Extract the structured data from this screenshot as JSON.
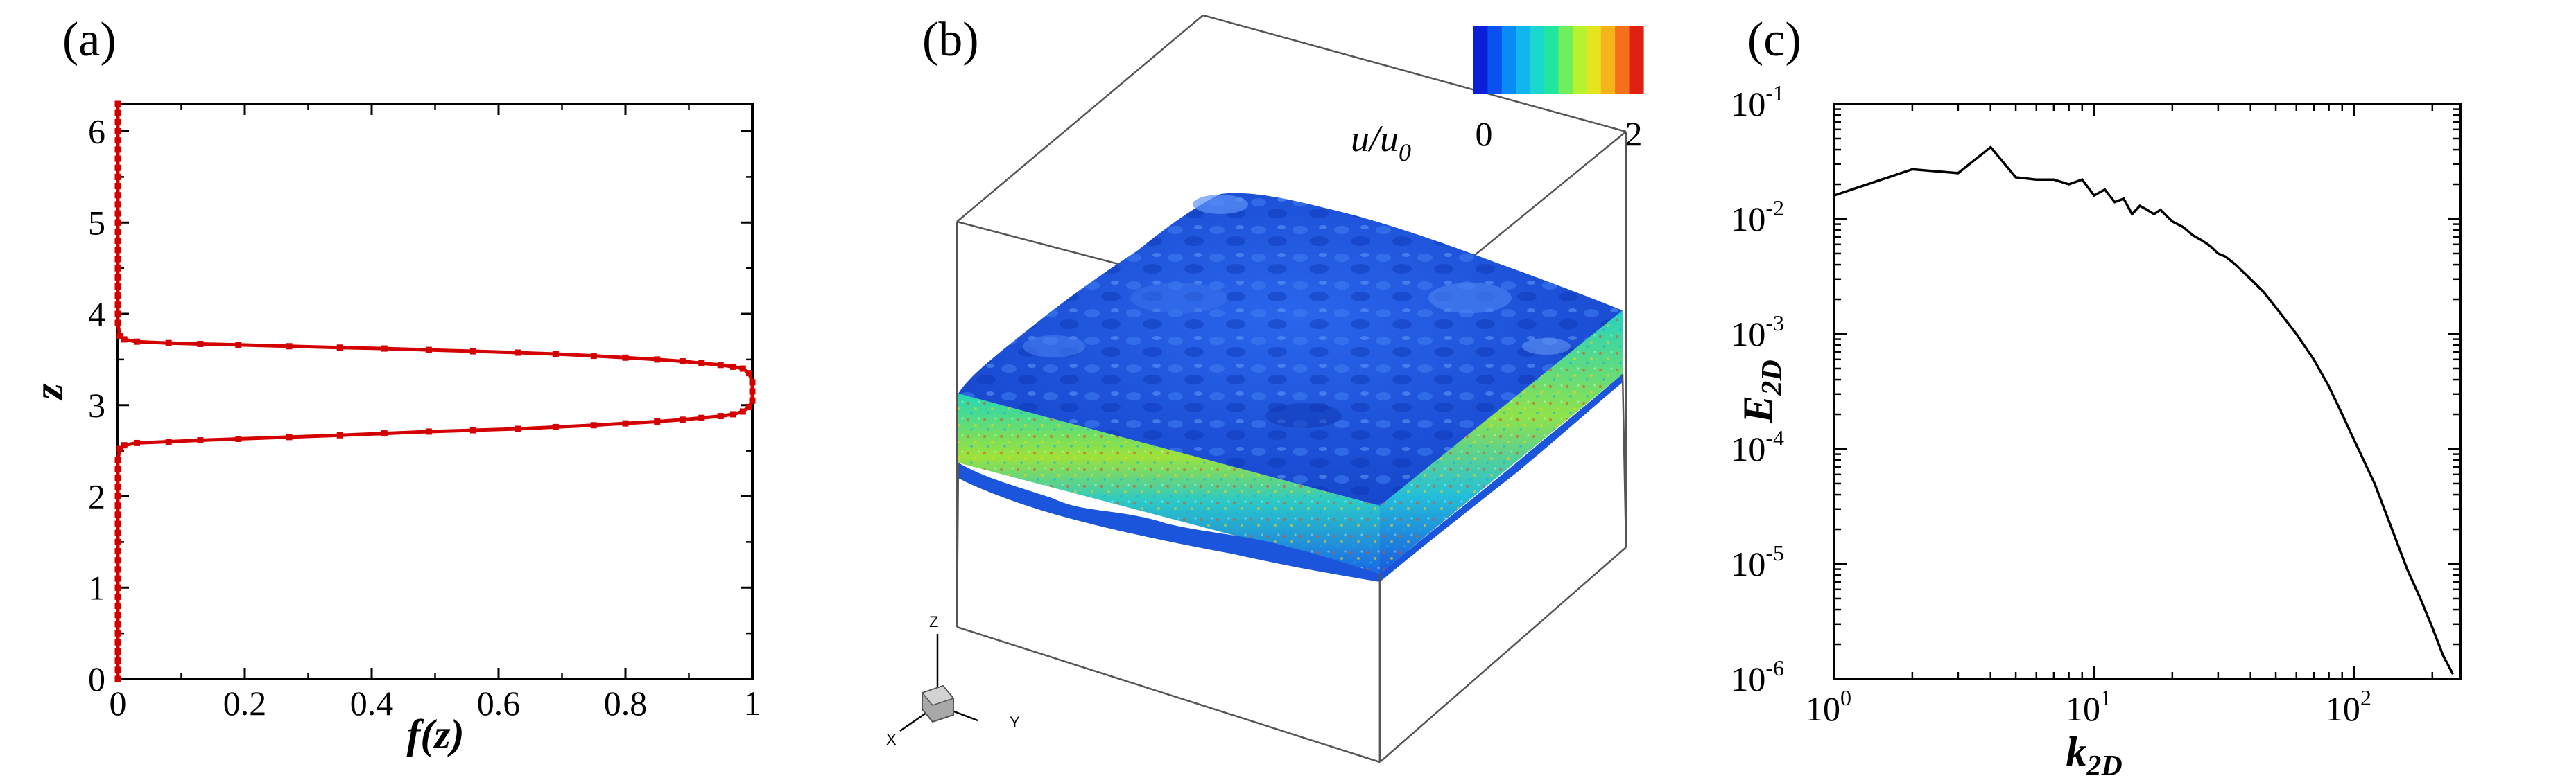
{
  "panels": {
    "a": {
      "label": "(a)"
    },
    "b": {
      "label": "(b)"
    },
    "c": {
      "label": "(c)"
    }
  },
  "colors": {
    "profile_line": "#d40000",
    "spectrum_line": "#000000",
    "surface_top": "#1a4fd6",
    "colorbar": [
      "#0b1fd8",
      "#0a52f0",
      "#0a8af5",
      "#11b6ee",
      "#1ad8d0",
      "#22e5a0",
      "#6fef5b",
      "#b6f230",
      "#e6e41f",
      "#f6b31a",
      "#f4701a",
      "#e02010"
    ]
  },
  "colorbar": {
    "label_main": "u/u",
    "label_sub": "0",
    "ticks": [
      "0",
      "2"
    ]
  },
  "triad": {
    "x": "X",
    "y": "Y",
    "z": "Z"
  },
  "chart_data": [
    {
      "panel": "(a)",
      "type": "line",
      "xlabel": "f(z)",
      "ylabel": "z",
      "xlim": [
        0,
        1
      ],
      "ylim": [
        0,
        6.3
      ],
      "xticks": [
        "0",
        "0.2",
        "0.4",
        "0.6",
        "0.8",
        "1"
      ],
      "yticks": [
        "0",
        "1",
        "2",
        "3",
        "4",
        "5",
        "6"
      ],
      "grid": false,
      "series": [
        {
          "marker": "square",
          "points": [
            [
              0.0,
              0.0
            ],
            [
              0.0,
              0.5
            ],
            [
              0.0,
              1.0
            ],
            [
              0.0,
              1.5
            ],
            [
              0.0,
              2.0
            ],
            [
              0.0,
              2.4
            ],
            [
              0.003,
              2.52
            ],
            [
              0.01,
              2.56
            ],
            [
              0.03,
              2.585
            ],
            [
              0.08,
              2.6
            ],
            [
              0.13,
              2.615
            ],
            [
              0.19,
              2.63
            ],
            [
              0.27,
              2.65
            ],
            [
              0.35,
              2.67
            ],
            [
              0.42,
              2.69
            ],
            [
              0.49,
              2.71
            ],
            [
              0.56,
              2.725
            ],
            [
              0.63,
              2.74
            ],
            [
              0.69,
              2.76
            ],
            [
              0.75,
              2.78
            ],
            [
              0.8,
              2.8
            ],
            [
              0.85,
              2.82
            ],
            [
              0.89,
              2.84
            ],
            [
              0.92,
              2.86
            ],
            [
              0.95,
              2.88
            ],
            [
              0.97,
              2.9
            ],
            [
              0.985,
              2.93
            ],
            [
              0.995,
              2.98
            ],
            [
              1.0,
              3.05
            ],
            [
              1.0,
              3.15
            ],
            [
              1.0,
              3.25
            ],
            [
              0.995,
              3.35
            ],
            [
              0.985,
              3.4
            ],
            [
              0.97,
              3.42
            ],
            [
              0.95,
              3.44
            ],
            [
              0.92,
              3.46
            ],
            [
              0.89,
              3.48
            ],
            [
              0.85,
              3.5
            ],
            [
              0.8,
              3.52
            ],
            [
              0.75,
              3.54
            ],
            [
              0.69,
              3.56
            ],
            [
              0.63,
              3.575
            ],
            [
              0.56,
              3.59
            ],
            [
              0.49,
              3.605
            ],
            [
              0.42,
              3.62
            ],
            [
              0.35,
              3.63
            ],
            [
              0.27,
              3.645
            ],
            [
              0.19,
              3.66
            ],
            [
              0.13,
              3.67
            ],
            [
              0.08,
              3.68
            ],
            [
              0.03,
              3.695
            ],
            [
              0.01,
              3.72
            ],
            [
              0.003,
              3.76
            ],
            [
              0.0,
              3.9
            ],
            [
              0.0,
              4.5
            ],
            [
              0.0,
              5.0
            ],
            [
              0.0,
              5.5
            ],
            [
              0.0,
              6.0
            ],
            [
              0.0,
              6.3
            ]
          ]
        }
      ]
    },
    {
      "panel": "(c)",
      "type": "line",
      "xlabel": "k",
      "xlabel_sub": "2D",
      "ylabel": "E",
      "ylabel_sub": "2D",
      "xscale": "log",
      "yscale": "log",
      "xlim": [
        1,
        256
      ],
      "ylim": [
        1e-06,
        0.1
      ],
      "xticks": [
        {
          "base": "10",
          "exp": "0"
        },
        {
          "base": "10",
          "exp": "1"
        },
        {
          "base": "10",
          "exp": "2"
        }
      ],
      "yticks": [
        {
          "base": "10",
          "exp": "-1"
        },
        {
          "base": "10",
          "exp": "-2"
        },
        {
          "base": "10",
          "exp": "-3"
        },
        {
          "base": "10",
          "exp": "-4"
        },
        {
          "base": "10",
          "exp": "-5"
        },
        {
          "base": "10",
          "exp": "-6"
        }
      ],
      "grid": false,
      "series": [
        {
          "points": [
            [
              1,
              0.016
            ],
            [
              2,
              0.027
            ],
            [
              3,
              0.025
            ],
            [
              4,
              0.042
            ],
            [
              5,
              0.023
            ],
            [
              6,
              0.022
            ],
            [
              7,
              0.022
            ],
            [
              8,
              0.02
            ],
            [
              9,
              0.022
            ],
            [
              10,
              0.016
            ],
            [
              11,
              0.018
            ],
            [
              12,
              0.014
            ],
            [
              13,
              0.015
            ],
            [
              14,
              0.011
            ],
            [
              15,
              0.013
            ],
            [
              16,
              0.012
            ],
            [
              17,
              0.011
            ],
            [
              18,
              0.012
            ],
            [
              20,
              0.0095
            ],
            [
              22,
              0.0085
            ],
            [
              24,
              0.0072
            ],
            [
              26,
              0.0065
            ],
            [
              28,
              0.0058
            ],
            [
              30,
              0.005
            ],
            [
              32,
              0.0047
            ],
            [
              35,
              0.004
            ],
            [
              40,
              0.003
            ],
            [
              45,
              0.0023
            ],
            [
              50,
              0.0017
            ],
            [
              60,
              0.001
            ],
            [
              70,
              0.0006
            ],
            [
              80,
              0.00035
            ],
            [
              90,
              0.0002
            ],
            [
              100,
              0.00012
            ],
            [
              120,
              5e-05
            ],
            [
              140,
              2e-05
            ],
            [
              160,
              9e-06
            ],
            [
              180,
              5e-06
            ],
            [
              200,
              2.8e-06
            ],
            [
              220,
              1.6e-06
            ],
            [
              240,
              1.1e-06
            ]
          ]
        }
      ]
    }
  ]
}
